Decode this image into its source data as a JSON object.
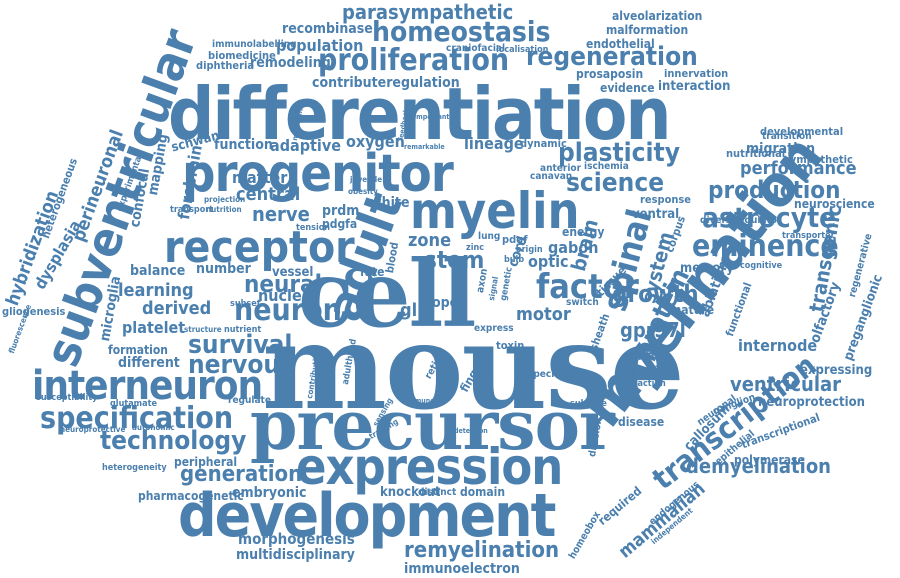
{
  "cloud": {
    "color": "#4a7fae",
    "words": [
      "mouse",
      "cell",
      "precursor",
      "differentiation",
      "development",
      "myelination",
      "progenitor",
      "expression",
      "myelin",
      "adult",
      "subventricular",
      "receptor",
      "interneuron",
      "oligodendrocyte",
      "specification",
      "remyelination",
      "proliferation",
      "regeneration",
      "homeostasis",
      "parasympathetic",
      "spinal",
      "transcription",
      "neuron",
      "survival",
      "nervous",
      "factor",
      "astrocyte",
      "science",
      "plasticity",
      "eminence",
      "production",
      "growth",
      "protein",
      "generation",
      "technology",
      "demyelination",
      "transgenic",
      "ventricular",
      "mammalian",
      "immunoelectron",
      "multidisciplinary",
      "morphogenesis",
      "knockout",
      "embryonic",
      "neural",
      "learning",
      "derived",
      "platelet",
      "different",
      "central",
      "nerve",
      "matter",
      "adaptive",
      "oxygen",
      "lineage",
      "stem",
      "zone",
      "brain",
      "system",
      "gpr37l",
      "performance",
      "migration",
      "internode",
      "expressing",
      "neuroprotection",
      "preganglionic",
      "olfactory",
      "callosum",
      "corpus",
      "hypoxia",
      "control",
      "motor",
      "optic",
      "glia",
      "opcs",
      "pdgfa",
      "prdm",
      "white",
      "vessel",
      "nuclear",
      "number",
      "balance",
      "hybridization",
      "perineuronal",
      "dysplasia",
      "microglia",
      "forebrain",
      "confocal",
      "mapping",
      "schwann",
      "function",
      "population",
      "recombinase",
      "remodeling",
      "contributeregulation",
      "diphtheria",
      "immunolabelling",
      "biomedicine",
      "craniofacial",
      "endothelial",
      "malformation",
      "alveolarization",
      "localisation",
      "prosaposin",
      "evidence",
      "innervation",
      "interaction",
      "developmental",
      "nutritional",
      "sympathetic",
      "transition",
      "neuroscience",
      "cognitive",
      "diversity",
      "regulator",
      "transporter",
      "regenerative",
      "memory",
      "ablation",
      "functional",
      "mature",
      "switch",
      "sheath",
      "tissue",
      "gabon",
      "cord",
      "energy",
      "ventral",
      "response",
      "anterior",
      "ischemia",
      "canavan",
      "dynamic",
      "fate",
      "blood",
      "pdgf",
      "lung",
      "formation",
      "structure",
      "nutrient",
      "glutamate",
      "susceptibility",
      "regulate",
      "autonomic",
      "neuroprotective",
      "heterogeneity",
      "peripheral",
      "pharmacogenetic",
      "domain",
      "distinct",
      "required",
      "endogenous",
      "homeobox",
      "independent",
      "polymerase",
      "epithelial",
      "transcriptional",
      "neuronal",
      "ganglion",
      "disease",
      "subtype",
      "division",
      "reaction",
      "specific",
      "toxin",
      "express",
      "finger",
      "retinal",
      "adulthood",
      "contribution",
      "subset",
      "transport",
      "nutrition",
      "projection",
      "tension",
      "heterogeneous",
      "gliogenesis",
      "fluorescence",
      "experimental",
      "stability",
      "juvenile",
      "obesity",
      "origin",
      "bulb",
      "genetic",
      "axon",
      "signal",
      "zinc",
      "important",
      "mechanism",
      "feedback",
      "remarkable",
      "sensing",
      "training",
      "detection",
      "immune"
    ]
  }
}
